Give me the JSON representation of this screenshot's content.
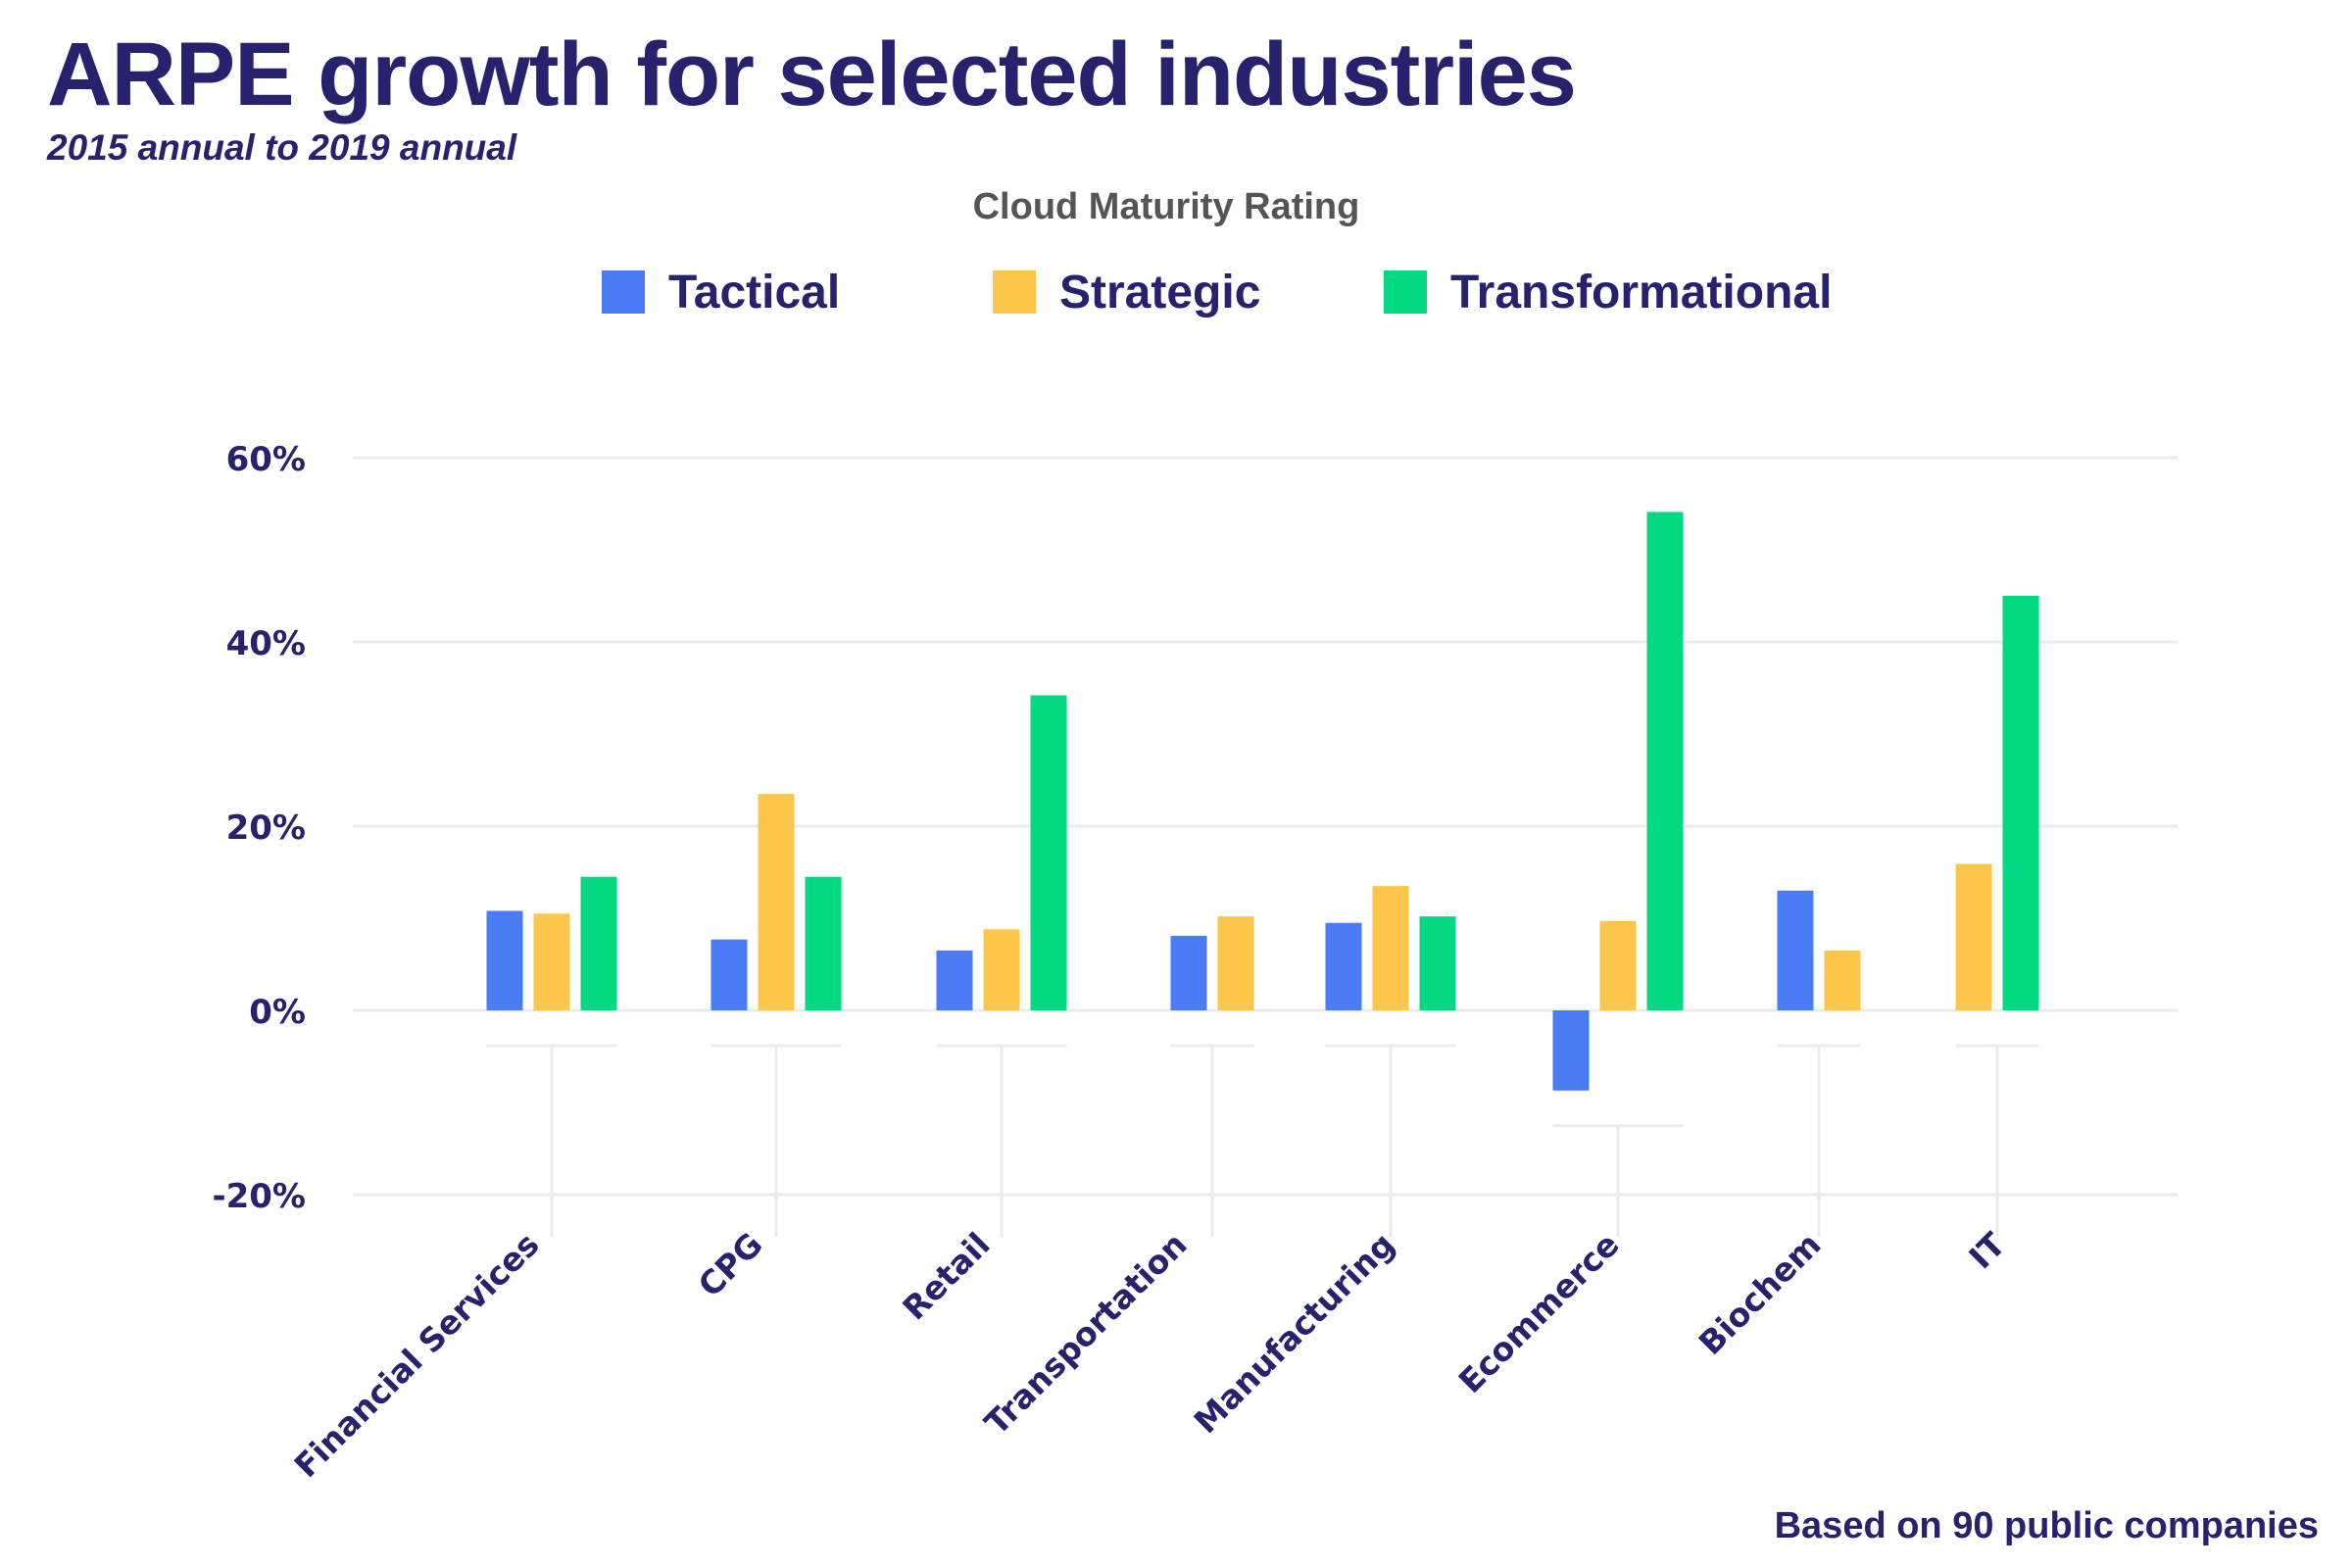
{
  "header": {
    "title": "ARPE growth for selected industries",
    "subtitle": "2015 annual to 2019 annual"
  },
  "legend": {
    "title": "Cloud Maturity Rating",
    "position": "top-center"
  },
  "footnote": "Based on 90 public companies",
  "colors": {
    "Tactical": "#4a7cf6",
    "Strategic": "#fcc64a",
    "Transformational": "#04d883",
    "text": "#27216e",
    "grid": "#e8ecef"
  },
  "chart_data": {
    "type": "bar",
    "title": "ARPE growth for selected industries",
    "subtitle": "2015 annual to 2019 annual",
    "legend_title": "Cloud Maturity Rating",
    "categories": [
      "Financial Services",
      "CPG",
      "Retail",
      "Transportation",
      "Manufacturing",
      "Ecommerce",
      "Biochem",
      "IT"
    ],
    "series": [
      {
        "name": "Tactical",
        "color": "#4a7cf6",
        "values": [
          10.8,
          7.7,
          6.5,
          8.1,
          9.5,
          -8.7,
          13.0,
          null
        ]
      },
      {
        "name": "Strategic",
        "color": "#fcc64a",
        "values": [
          10.5,
          23.5,
          8.8,
          10.2,
          13.5,
          9.7,
          6.5,
          15.9
        ]
      },
      {
        "name": "Transformational",
        "color": "#04d883",
        "values": [
          14.5,
          14.5,
          34.2,
          null,
          10.2,
          54.1,
          null,
          45.0
        ]
      }
    ],
    "yticks": [
      60,
      40,
      20,
      0,
      -20
    ],
    "ytick_labels": [
      "60%",
      "40%",
      "20%",
      "0%",
      "-20%"
    ],
    "ylim": [
      -25,
      60
    ],
    "xlabel": "",
    "ylabel": "",
    "grid": true
  }
}
